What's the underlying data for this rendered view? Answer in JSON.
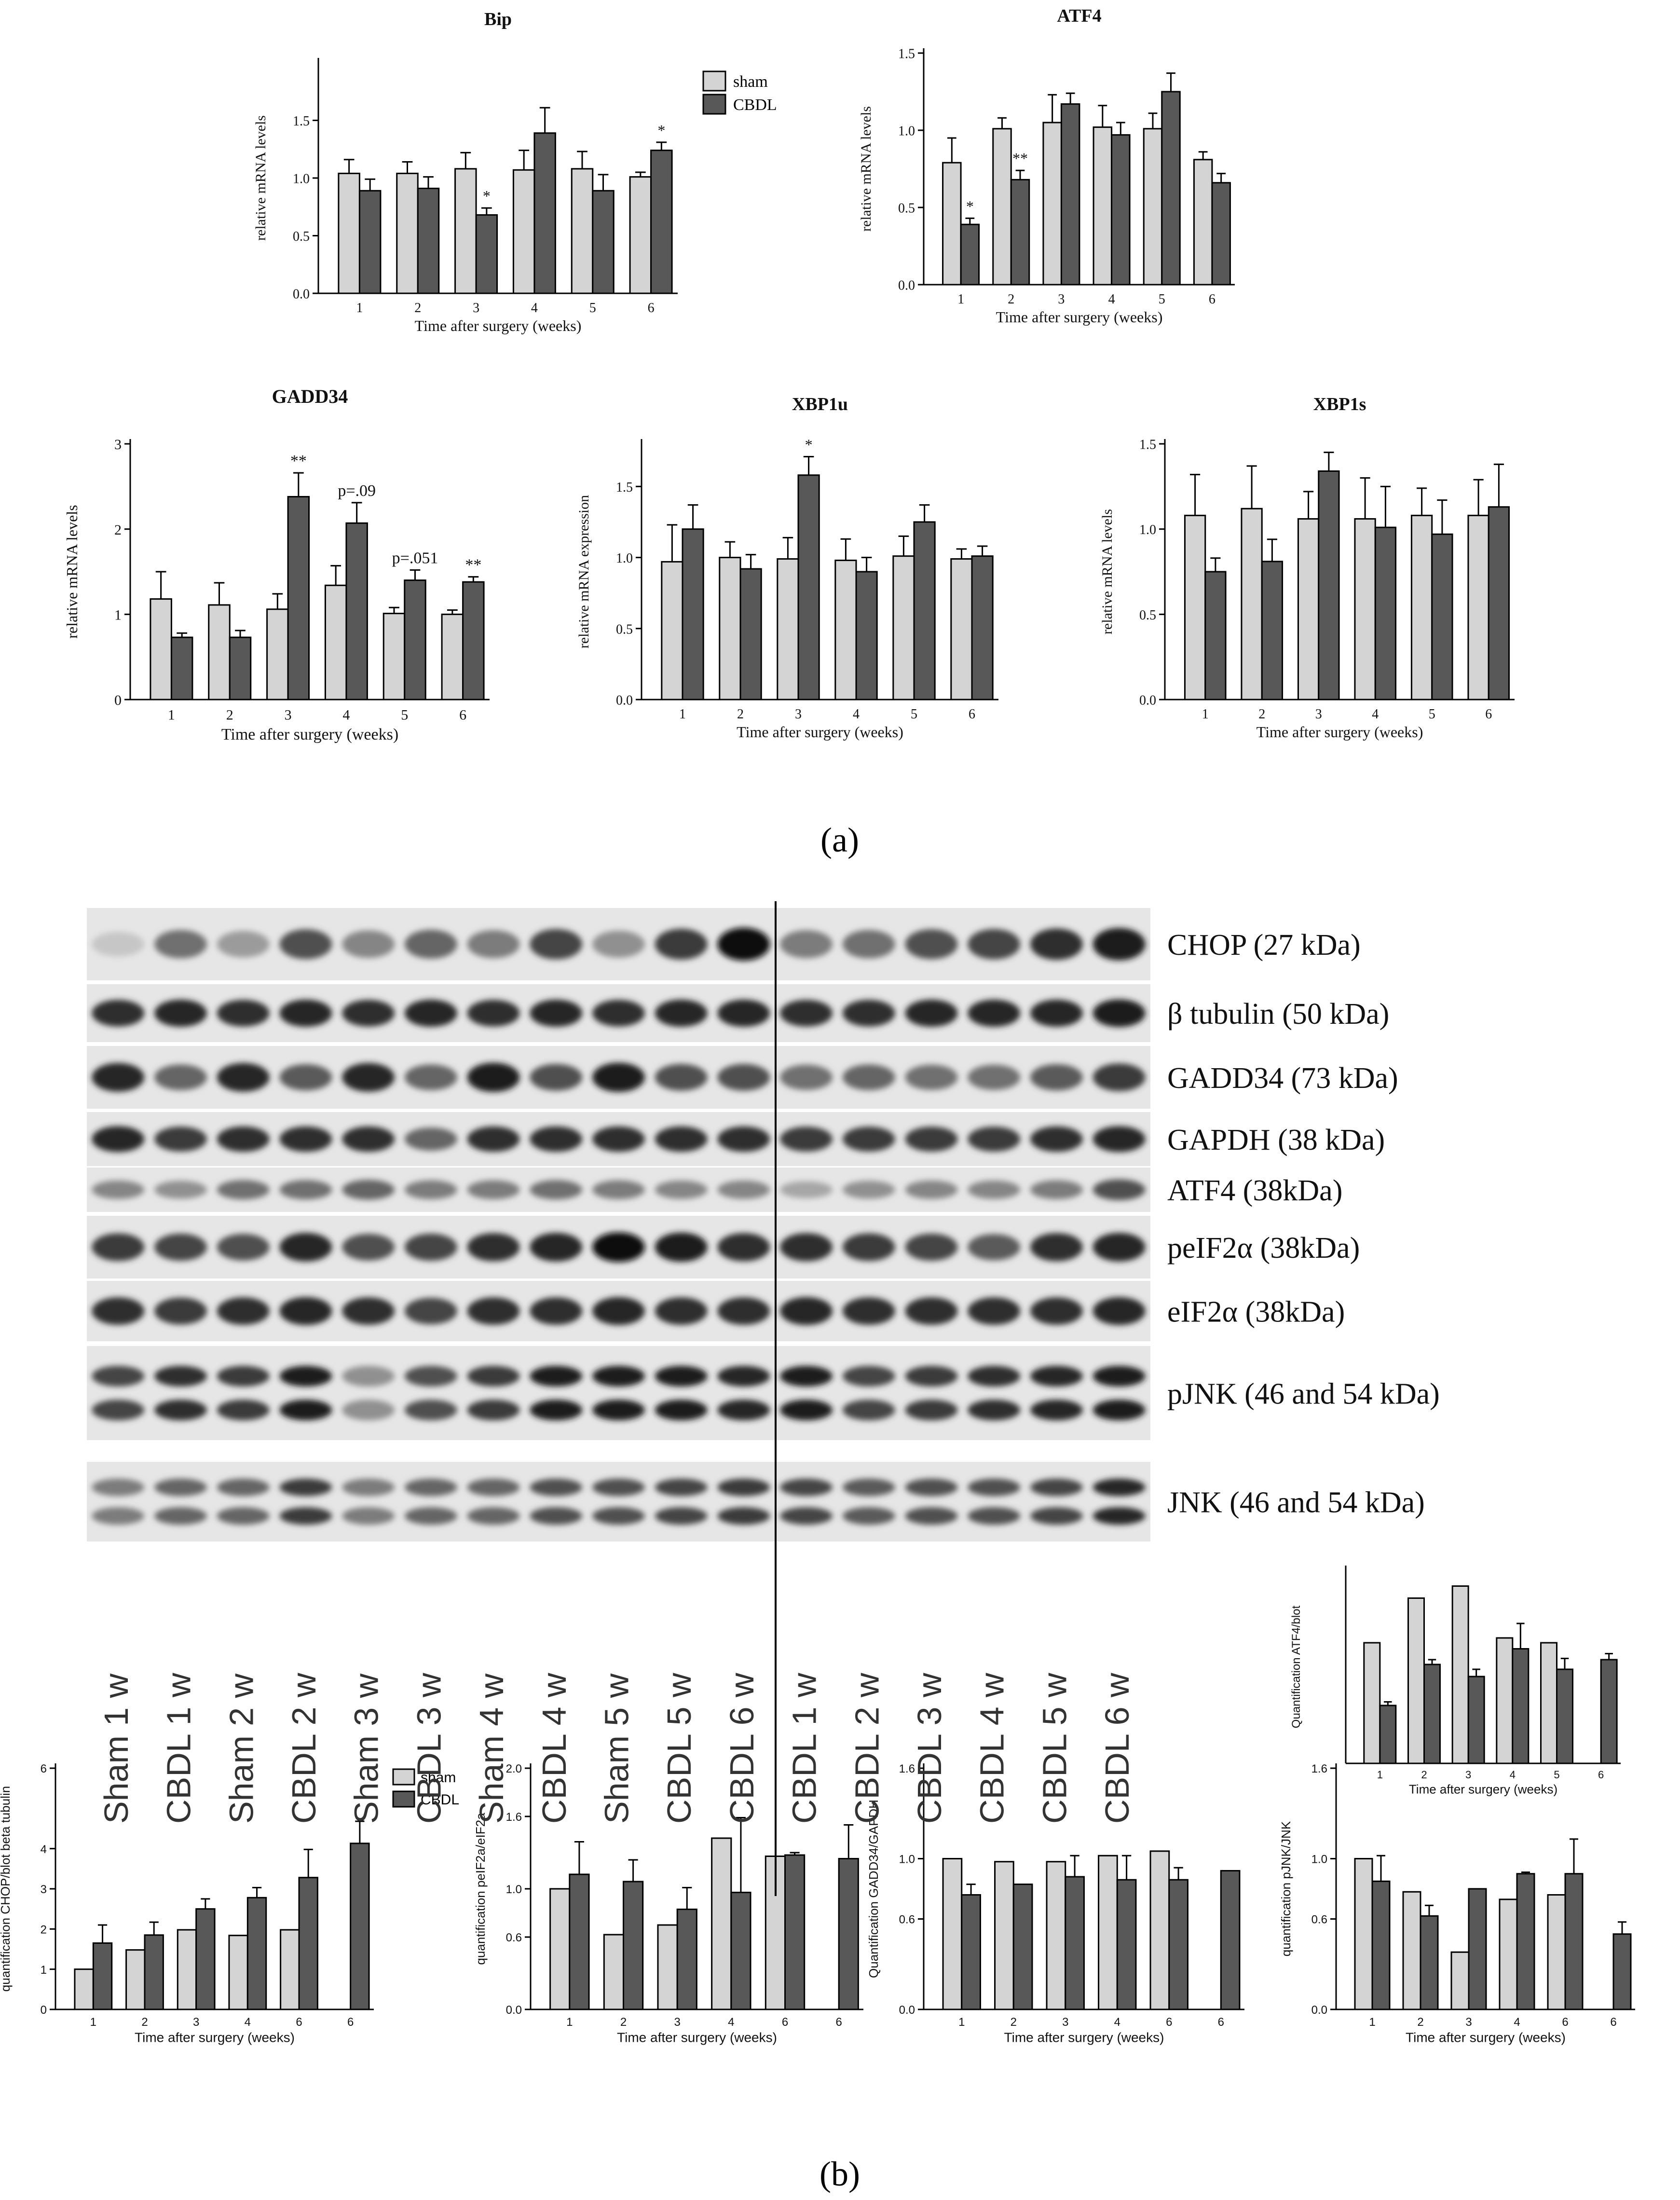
{
  "colors": {
    "sham": "#d4d4d4",
    "cbdl": "#585858",
    "axis": "#000000",
    "text": "#111111"
  },
  "panel_labels": {
    "a": "(a)",
    "b": "(b)"
  },
  "legend_a": {
    "sham": "sham",
    "cbdl": "CBDL"
  },
  "legend_b": {
    "sham": "sham",
    "cbdl": "CBDL"
  },
  "chart_data": [
    {
      "id": "bip",
      "type": "bar",
      "title": "Bip",
      "xlabel": "Time after surgery (weeks)",
      "ylabel": "relative mRNA levels",
      "categories": [
        "1",
        "2",
        "3",
        "4",
        "5",
        "6"
      ],
      "ylim": [
        0,
        2.0
      ],
      "yticks": [
        "0.0",
        "0.5",
        "1.0",
        "1.5"
      ],
      "series": [
        {
          "name": "sham",
          "values": [
            1.04,
            1.04,
            1.08,
            1.07,
            1.08,
            1.01
          ],
          "errors": [
            0.12,
            0.1,
            0.14,
            0.17,
            0.15,
            0.04
          ]
        },
        {
          "name": "CBDL",
          "values": [
            0.89,
            0.91,
            0.68,
            1.39,
            0.89,
            1.24
          ],
          "errors": [
            0.1,
            0.1,
            0.06,
            0.22,
            0.14,
            0.07
          ]
        }
      ],
      "annotations": [
        {
          "text": "*",
          "category": 2,
          "series": 1
        },
        {
          "text": "*",
          "category": 5,
          "series": 1
        }
      ]
    },
    {
      "id": "atf4",
      "type": "bar",
      "title": "ATF4",
      "xlabel": "Time after surgery (weeks)",
      "ylabel": "relative mRNA levels",
      "categories": [
        "1",
        "2",
        "3",
        "4",
        "5",
        "6"
      ],
      "ylim": [
        0,
        1.5
      ],
      "yticks": [
        "0.0",
        "0.5",
        "1.0",
        "1.5"
      ],
      "series": [
        {
          "name": "sham",
          "values": [
            0.79,
            1.01,
            1.05,
            1.02,
            1.01,
            0.81
          ],
          "errors": [
            0.16,
            0.07,
            0.18,
            0.14,
            0.1,
            0.05
          ]
        },
        {
          "name": "CBDL",
          "values": [
            0.39,
            0.68,
            1.17,
            0.97,
            1.25,
            0.66
          ],
          "errors": [
            0.04,
            0.06,
            0.07,
            0.08,
            0.12,
            0.06
          ]
        }
      ],
      "annotations": [
        {
          "text": "*",
          "category": 0,
          "series": 1
        },
        {
          "text": "**",
          "category": 1,
          "series": 1
        }
      ]
    },
    {
      "id": "gadd34",
      "type": "bar",
      "title": "GADD34",
      "xlabel": "Time after surgery (weeks)",
      "ylabel": "relative mRNA levels",
      "categories": [
        "1",
        "2",
        "3",
        "4",
        "5",
        "6"
      ],
      "ylim": [
        0,
        3
      ],
      "yticks": [
        "0",
        "1",
        "2",
        "3"
      ],
      "series": [
        {
          "name": "sham",
          "values": [
            1.18,
            1.11,
            1.06,
            1.34,
            1.01,
            1.0
          ],
          "errors": [
            0.32,
            0.26,
            0.18,
            0.23,
            0.07,
            0.05
          ]
        },
        {
          "name": "CBDL",
          "values": [
            0.73,
            0.73,
            2.38,
            2.07,
            1.4,
            1.38
          ],
          "errors": [
            0.05,
            0.08,
            0.28,
            0.24,
            0.12,
            0.06
          ]
        }
      ],
      "annotations": [
        {
          "text": "**",
          "category": 2,
          "series": 1
        },
        {
          "text": "p=.09",
          "category": 3,
          "series": 1
        },
        {
          "text": "p=.051",
          "category": 4,
          "series": 1
        },
        {
          "text": "**",
          "category": 5,
          "series": 1
        }
      ]
    },
    {
      "id": "xbp1u",
      "type": "bar",
      "title": "XBP1u",
      "xlabel": "Time after surgery (weeks)",
      "ylabel": "relative mRNA expression",
      "categories": [
        "1",
        "2",
        "3",
        "4",
        "5",
        "6"
      ],
      "ylim": [
        0,
        1.8
      ],
      "yticks": [
        "0.0",
        "0.5",
        "1.0",
        "1.5"
      ],
      "series": [
        {
          "name": "sham",
          "values": [
            0.97,
            1.0,
            0.99,
            0.98,
            1.01,
            0.99
          ],
          "errors": [
            0.26,
            0.11,
            0.15,
            0.15,
            0.14,
            0.07
          ]
        },
        {
          "name": "CBDL",
          "values": [
            1.2,
            0.92,
            1.58,
            0.9,
            1.25,
            1.01
          ],
          "errors": [
            0.17,
            0.1,
            0.13,
            0.1,
            0.12,
            0.07
          ]
        }
      ],
      "annotations": [
        {
          "text": "*",
          "category": 2,
          "series": 1
        }
      ]
    },
    {
      "id": "xbp1s",
      "type": "bar",
      "title": "XBP1s",
      "xlabel": "Time after surgery (weeks)",
      "ylabel": "relative mRNA levels",
      "categories": [
        "1",
        "2",
        "3",
        "4",
        "5",
        "6"
      ],
      "ylim": [
        0,
        1.5
      ],
      "yticks": [
        "0.0",
        "0.5",
        "1.0",
        "1.5"
      ],
      "series": [
        {
          "name": "sham",
          "values": [
            1.08,
            1.12,
            1.06,
            1.06,
            1.08,
            1.08
          ],
          "errors": [
            0.24,
            0.25,
            0.16,
            0.24,
            0.16,
            0.21
          ]
        },
        {
          "name": "CBDL",
          "values": [
            0.75,
            0.81,
            1.34,
            1.01,
            0.97,
            1.13
          ],
          "errors": [
            0.08,
            0.13,
            0.11,
            0.24,
            0.2,
            0.25
          ]
        }
      ],
      "annotations": []
    },
    {
      "id": "q_atf4",
      "type": "bar",
      "title": "",
      "xlabel": "Time after surgery (weeks)",
      "ylabel": "Quantification ATF4/blot",
      "categories": [
        "1",
        "2",
        "3",
        "4",
        "5",
        "6"
      ],
      "ylim": [
        0,
        1.6
      ],
      "yticks": [],
      "series": [
        {
          "name": "sham",
          "values": [
            1.0,
            1.37,
            1.47,
            1.04,
            1.0,
            0.0
          ],
          "errors": [
            0,
            0,
            0,
            0,
            0,
            0
          ]
        },
        {
          "name": "CBDL",
          "values": [
            0.48,
            0.82,
            0.72,
            0.95,
            0.78,
            0.86
          ],
          "errors": [
            0.03,
            0.04,
            0.06,
            0.21,
            0.09,
            0.05
          ]
        }
      ],
      "annotations": []
    },
    {
      "id": "q_chop",
      "type": "bar",
      "title": "",
      "xlabel": "Time after surgery (weeks)",
      "ylabel": "quantification CHOP/blot beta tubulin",
      "categories": [
        "1",
        "2",
        "3",
        "4",
        "6",
        "6"
      ],
      "ylim": [
        0,
        6
      ],
      "yticks": [
        "0",
        "1",
        "2",
        "3",
        "4",
        "6"
      ],
      "series": [
        {
          "name": "sham",
          "values": [
            1.0,
            1.48,
            1.98,
            1.84,
            1.98,
            0.0
          ],
          "errors": [
            0,
            0,
            0,
            0,
            0,
            0
          ]
        },
        {
          "name": "CBDL",
          "values": [
            1.65,
            1.85,
            2.5,
            2.78,
            3.28,
            4.13
          ],
          "errors": [
            0.45,
            0.32,
            0.25,
            0.25,
            0.7,
            0.55
          ]
        }
      ],
      "annotations": []
    },
    {
      "id": "q_peif2a",
      "type": "bar",
      "title": "",
      "xlabel": "Time after surgery (weeks)",
      "ylabel": "quantification peIF2a/eIF2a",
      "categories": [
        "1",
        "2",
        "3",
        "4",
        "6",
        "6"
      ],
      "ylim": [
        0,
        2.0
      ],
      "yticks": [
        "0.0",
        "0.6",
        "1.0",
        "1.6",
        "2.0"
      ],
      "series": [
        {
          "name": "sham",
          "values": [
            1.0,
            0.62,
            0.7,
            1.42,
            1.27,
            0.0
          ],
          "errors": [
            0,
            0,
            0,
            0,
            0,
            0
          ]
        },
        {
          "name": "CBDL",
          "values": [
            1.12,
            1.06,
            0.83,
            0.97,
            1.28,
            1.25
          ],
          "errors": [
            0.27,
            0.18,
            0.18,
            0.62,
            0.02,
            0.28
          ]
        }
      ],
      "annotations": []
    },
    {
      "id": "q_gadd34",
      "type": "bar",
      "title": "",
      "xlabel": "Time after surgery (weeks)",
      "ylabel": "Quantification GADD34/GAPDH",
      "categories": [
        "1",
        "2",
        "3",
        "4",
        "6",
        "6"
      ],
      "ylim": [
        0,
        1.6
      ],
      "yticks": [
        "0.0",
        "0.6",
        "1.0",
        "1.6"
      ],
      "series": [
        {
          "name": "sham",
          "values": [
            1.0,
            0.98,
            0.98,
            1.02,
            1.05,
            0.0
          ],
          "errors": [
            0,
            0,
            0,
            0,
            0,
            0
          ]
        },
        {
          "name": "CBDL",
          "values": [
            0.76,
            0.83,
            0.88,
            0.86,
            0.86,
            0.92
          ],
          "errors": [
            0.07,
            0.0,
            0.14,
            0.16,
            0.08,
            0.0
          ]
        }
      ],
      "annotations": []
    },
    {
      "id": "q_pjnk",
      "type": "bar",
      "title": "",
      "xlabel": "Time after surgery (weeks)",
      "ylabel": "quantification pJNK/JNK",
      "categories": [
        "1",
        "2",
        "3",
        "4",
        "6",
        "6"
      ],
      "ylim": [
        0,
        1.6
      ],
      "yticks": [
        "0.0",
        "0.6",
        "1.0",
        "1.6"
      ],
      "series": [
        {
          "name": "sham",
          "values": [
            1.0,
            0.78,
            0.38,
            0.73,
            0.76,
            0.0
          ],
          "errors": [
            0,
            0,
            0,
            0,
            0,
            0
          ]
        },
        {
          "name": "CBDL",
          "values": [
            0.85,
            0.62,
            0.8,
            0.9,
            0.9,
            0.5
          ],
          "errors": [
            0.17,
            0.07,
            0.0,
            0.01,
            0.23,
            0.08
          ]
        }
      ],
      "annotations": []
    }
  ],
  "blot": {
    "lanes": [
      "Sham 1 w",
      "CBDL 1 w",
      "Sham 2 w",
      "CBDL 2 w",
      "Sham 3 w",
      "CBDL 3 w",
      "Sham 4 w",
      "CBDL 4 w",
      "Sham 5 w",
      "CBDL 5 w",
      "CBDL 6 w",
      "CBDL 1 w",
      "CBDL 2 w",
      "CBDL 3 w",
      "CBDL 4 w",
      "CBDL 5 w",
      "CBDL 6 w"
    ],
    "strips": [
      {
        "label": "CHOP (27 kDa)",
        "intensity": [
          0.15,
          0.55,
          0.35,
          0.7,
          0.45,
          0.6,
          0.5,
          0.75,
          0.4,
          0.8,
          1.0,
          0.5,
          0.55,
          0.7,
          0.75,
          0.85,
          0.95
        ],
        "double": false
      },
      {
        "label": "β tubulin (50 kDa)",
        "intensity": [
          0.85,
          0.9,
          0.85,
          0.9,
          0.85,
          0.9,
          0.85,
          0.9,
          0.85,
          0.9,
          0.9,
          0.85,
          0.85,
          0.9,
          0.9,
          0.9,
          0.95
        ],
        "double": false
      },
      {
        "label": "GADD34 (73 kDa)",
        "intensity": [
          0.9,
          0.6,
          0.9,
          0.65,
          0.9,
          0.6,
          0.95,
          0.7,
          0.95,
          0.7,
          0.7,
          0.55,
          0.6,
          0.55,
          0.55,
          0.65,
          0.8
        ],
        "double": false
      },
      {
        "label": "GAPDH (38 kDa)",
        "intensity": [
          0.9,
          0.8,
          0.85,
          0.85,
          0.85,
          0.6,
          0.85,
          0.85,
          0.85,
          0.85,
          0.85,
          0.8,
          0.8,
          0.8,
          0.8,
          0.85,
          0.9
        ],
        "double": false
      },
      {
        "label": "ATF4 (38kDa)",
        "intensity": [
          0.45,
          0.4,
          0.55,
          0.55,
          0.6,
          0.5,
          0.5,
          0.55,
          0.5,
          0.45,
          0.45,
          0.3,
          0.4,
          0.45,
          0.45,
          0.5,
          0.7
        ],
        "double": false
      },
      {
        "label": "peIF2α (38kDa)",
        "intensity": [
          0.8,
          0.75,
          0.7,
          0.9,
          0.7,
          0.75,
          0.85,
          0.9,
          1.0,
          0.95,
          0.85,
          0.85,
          0.8,
          0.75,
          0.65,
          0.85,
          0.9
        ],
        "double": false
      },
      {
        "label": "eIF2α (38kDa)",
        "intensity": [
          0.85,
          0.8,
          0.85,
          0.9,
          0.85,
          0.75,
          0.85,
          0.85,
          0.9,
          0.85,
          0.85,
          0.9,
          0.85,
          0.85,
          0.85,
          0.85,
          0.9
        ],
        "double": false
      },
      {
        "label": "pJNK (46 and 54 kDa)",
        "intensity": [
          0.75,
          0.85,
          0.8,
          0.95,
          0.4,
          0.7,
          0.8,
          0.95,
          0.95,
          0.95,
          0.9,
          0.95,
          0.75,
          0.8,
          0.85,
          0.9,
          0.95
        ],
        "double": true
      },
      {
        "label": "JNK (46 and 54 kDa)",
        "intensity": [
          0.5,
          0.6,
          0.6,
          0.8,
          0.5,
          0.6,
          0.6,
          0.7,
          0.7,
          0.75,
          0.8,
          0.75,
          0.65,
          0.7,
          0.7,
          0.75,
          0.9
        ],
        "double": true
      }
    ]
  }
}
